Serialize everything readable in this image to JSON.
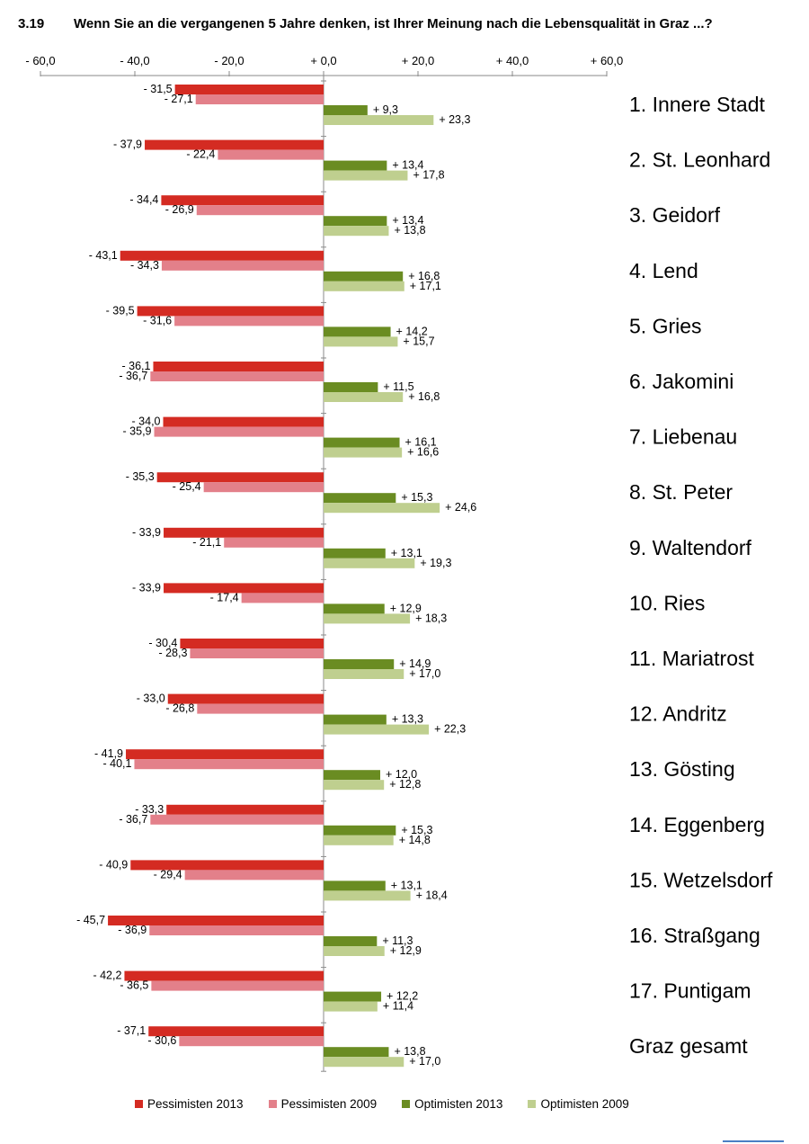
{
  "header": {
    "number": "3.19",
    "title": "Wenn Sie an die vergangenen 5 Jahre denken, ist  Ihrer Meinung nach die Lebensqualität in Graz ...?"
  },
  "chart_data": {
    "type": "bar",
    "orientation": "horizontal",
    "title": "",
    "xlabel": "",
    "ylabel": "",
    "xlim": [
      -60,
      60
    ],
    "grid": false,
    "legend_position": "bottom",
    "x_tick_labels": [
      "- 60,0",
      "- 40,0",
      "- 20,0",
      "+ 0,0",
      "+ 20,0",
      "+ 40,0",
      "+ 60,0"
    ],
    "categories": [
      "1. Innere Stadt",
      "2. St. Leonhard",
      "3. Geidorf",
      "4. Lend",
      "5. Gries",
      "6. Jakomini",
      "7. Liebenau",
      "8. St. Peter",
      "9. Waltendorf",
      "10. Ries",
      "11. Mariatrost",
      "12. Andritz",
      "13. Gösting",
      "14. Eggenberg",
      "15. Wetzelsdorf",
      "16. Straßgang",
      "17. Puntigam",
      "Graz gesamt"
    ],
    "series": [
      {
        "name": "Pessimisten 2013",
        "color": "#d42b22",
        "values": [
          -31.5,
          -37.9,
          -34.4,
          -43.1,
          -39.5,
          -36.1,
          -34.0,
          -35.3,
          -33.9,
          -33.9,
          -30.4,
          -33.0,
          -41.9,
          -33.3,
          -40.9,
          -45.7,
          -42.2,
          -37.1
        ],
        "labels": [
          "- 31,5",
          "- 37,9",
          "- 34,4",
          "- 43,1",
          "- 39,5",
          "- 36,1",
          "- 34,0",
          "- 35,3",
          "- 33,9",
          "- 33,9",
          "- 30,4",
          "- 33,0",
          "- 41,9",
          "- 33,3",
          "- 40,9",
          "- 45,7",
          "- 42,2",
          "- 37,1"
        ]
      },
      {
        "name": "Pessimisten 2009",
        "color": "#e3808a",
        "values": [
          -27.1,
          -22.4,
          -26.9,
          -34.3,
          -31.6,
          -36.7,
          -35.9,
          -25.4,
          -21.1,
          -17.4,
          -28.3,
          -26.8,
          -40.1,
          -36.7,
          -29.4,
          -36.9,
          -36.5,
          -30.6
        ],
        "labels": [
          "- 27,1",
          "- 22,4",
          "- 26,9",
          "- 34,3",
          "- 31,6",
          "- 36,7",
          "- 35,9",
          "- 25,4",
          "- 21,1",
          "- 17,4",
          "- 28,3",
          "- 26,8",
          "- 40,1",
          "- 36,7",
          "- 29,4",
          "- 36,9",
          "- 36,5",
          "- 30,6"
        ]
      },
      {
        "name": "Optimisten 2013",
        "color": "#6a8c22",
        "values": [
          9.3,
          13.4,
          13.4,
          16.8,
          14.2,
          11.5,
          16.1,
          15.3,
          13.1,
          12.9,
          14.9,
          13.3,
          12.0,
          15.3,
          13.1,
          11.3,
          12.2,
          13.8
        ],
        "labels": [
          "+ 9,3",
          "+ 13,4",
          "+ 13,4",
          "+ 16,8",
          "+ 14,2",
          "+ 11,5",
          "+ 16,1",
          "+ 15,3",
          "+ 13,1",
          "+ 12,9",
          "+ 14,9",
          "+ 13,3",
          "+ 12,0",
          "+ 15,3",
          "+ 13,1",
          "+ 11,3",
          "+ 12,2",
          "+ 13,8"
        ]
      },
      {
        "name": "Optimisten 2009",
        "color": "#bfcf8f",
        "values": [
          23.3,
          17.8,
          13.8,
          17.1,
          15.7,
          16.8,
          16.6,
          24.6,
          19.3,
          18.3,
          17.0,
          22.3,
          12.8,
          14.8,
          18.4,
          12.9,
          11.4,
          17.0
        ],
        "labels": [
          "+ 23,3",
          "+ 17,8",
          "+ 13,8",
          "+ 17,1",
          "+ 15,7",
          "+ 16,8",
          "+ 16,6",
          "+ 24,6",
          "+ 19,3",
          "+ 18,3",
          "+ 17,0",
          "+ 22,3",
          "+ 12,8",
          "+ 14,8",
          "+ 18,4",
          "+ 12,9",
          "+ 11,4",
          "+ 17,0"
        ]
      }
    ]
  }
}
